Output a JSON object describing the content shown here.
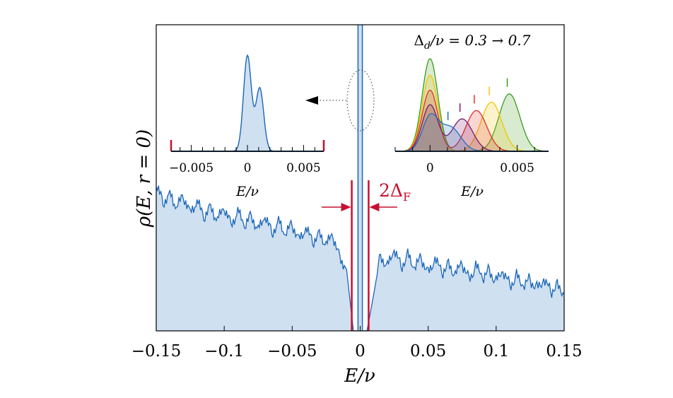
{
  "chart_data": [
    {
      "type": "area",
      "xlabel": "E/ν",
      "ylabel": "ρ(E, r = 0)",
      "xlim": [
        -0.15,
        0.15
      ],
      "ylim": [
        0,
        1
      ],
      "xticks": [
        -0.15,
        -0.1,
        -0.05,
        0,
        0.05,
        0.1,
        0.15
      ],
      "xtick_labels": [
        "−0.15",
        "−0.1",
        "−0.05",
        "0",
        "0.05",
        "0.1",
        "0.15"
      ],
      "grid": false,
      "line_color": "#1a66b8",
      "fill_color": "#cfe0f1",
      "x": [
        -0.15,
        -0.145,
        -0.14,
        -0.135,
        -0.13,
        -0.125,
        -0.12,
        -0.115,
        -0.11,
        -0.105,
        -0.1,
        -0.095,
        -0.09,
        -0.085,
        -0.08,
        -0.075,
        -0.07,
        -0.065,
        -0.06,
        -0.055,
        -0.05,
        -0.045,
        -0.04,
        -0.035,
        -0.03,
        -0.025,
        -0.02,
        -0.015,
        -0.01,
        -0.005,
        0,
        0.005,
        0.01,
        0.015,
        0.02,
        0.025,
        0.03,
        0.035,
        0.04,
        0.045,
        0.05,
        0.055,
        0.06,
        0.065,
        0.07,
        0.075,
        0.08,
        0.085,
        0.09,
        0.095,
        0.1,
        0.105,
        0.11,
        0.115,
        0.12,
        0.125,
        0.13,
        0.135,
        0.14,
        0.145,
        0.15
      ],
      "y": [
        0.47,
        0.42,
        0.45,
        0.4,
        0.44,
        0.39,
        0.42,
        0.37,
        0.41,
        0.36,
        0.4,
        0.35,
        0.39,
        0.34,
        0.38,
        0.33,
        0.37,
        0.32,
        0.36,
        0.31,
        0.35,
        0.3,
        0.33,
        0.29,
        0.32,
        0.28,
        0.31,
        0.24,
        0.2,
        0.0,
        0.0,
        0.0,
        0.12,
        0.25,
        0.21,
        0.26,
        0.21,
        0.25,
        0.2,
        0.24,
        0.19,
        0.23,
        0.19,
        0.22,
        0.18,
        0.22,
        0.17,
        0.21,
        0.17,
        0.2,
        0.16,
        0.19,
        0.15,
        0.18,
        0.14,
        0.17,
        0.14,
        0.16,
        0.13,
        0.15,
        0.12
      ],
      "central_peak": {
        "x": 0,
        "half_width": 0.0016,
        "extends_beyond_ylim": true
      },
      "annotation": {
        "text_main": "2Δ",
        "text_sub": "F",
        "gap_edges": [
          -0.0062,
          0.0062
        ],
        "color": "#c8102e"
      }
    },
    {
      "type": "area",
      "panel": "left-inset",
      "xlabel": "E/ν",
      "xlim": [
        -0.0068,
        0.0068
      ],
      "ylim": [
        0,
        1.05
      ],
      "xticks": [
        -0.005,
        0,
        0.005
      ],
      "xtick_labels": [
        "−0.005",
        "0",
        "0.005"
      ],
      "peaks": [
        {
          "center": 0,
          "height": 1.0,
          "sigma": 0.00035
        },
        {
          "center": 0.0011,
          "height": 0.66,
          "sigma": 0.00035
        }
      ],
      "line_color": "#1a66b8",
      "fill_color": "#cfe0f1",
      "edge_marker_color": "#c8102e"
    },
    {
      "type": "area",
      "panel": "right-inset",
      "title_main": "Δ",
      "title_sub": "d",
      "title_rest": "/ν = 0.3 → 0.7",
      "xlabel": "E/ν",
      "xlim": [
        -0.002,
        0.0068
      ],
      "ylim": [
        0,
        1.05
      ],
      "xticks": [
        0,
        0.005
      ],
      "xtick_labels": [
        "0",
        "0.005"
      ],
      "sigma": 0.0006,
      "series": [
        {
          "color": "#3a9c1a",
          "center_height": 1.0,
          "side_center": 0.00455,
          "side_height": 0.62
        },
        {
          "color": "#f2c500",
          "center_height": 0.82,
          "side_center": 0.00352,
          "side_height": 0.53
        },
        {
          "color": "#e0302a",
          "center_height": 0.66,
          "side_center": 0.00266,
          "side_height": 0.44
        },
        {
          "color": "#7b1a6e",
          "center_height": 0.5,
          "side_center": 0.00184,
          "side_height": 0.35
        },
        {
          "color": "#1f6fc0",
          "center_height": 0.36,
          "side_center": 0.00115,
          "side_height": 0.26
        }
      ]
    }
  ]
}
